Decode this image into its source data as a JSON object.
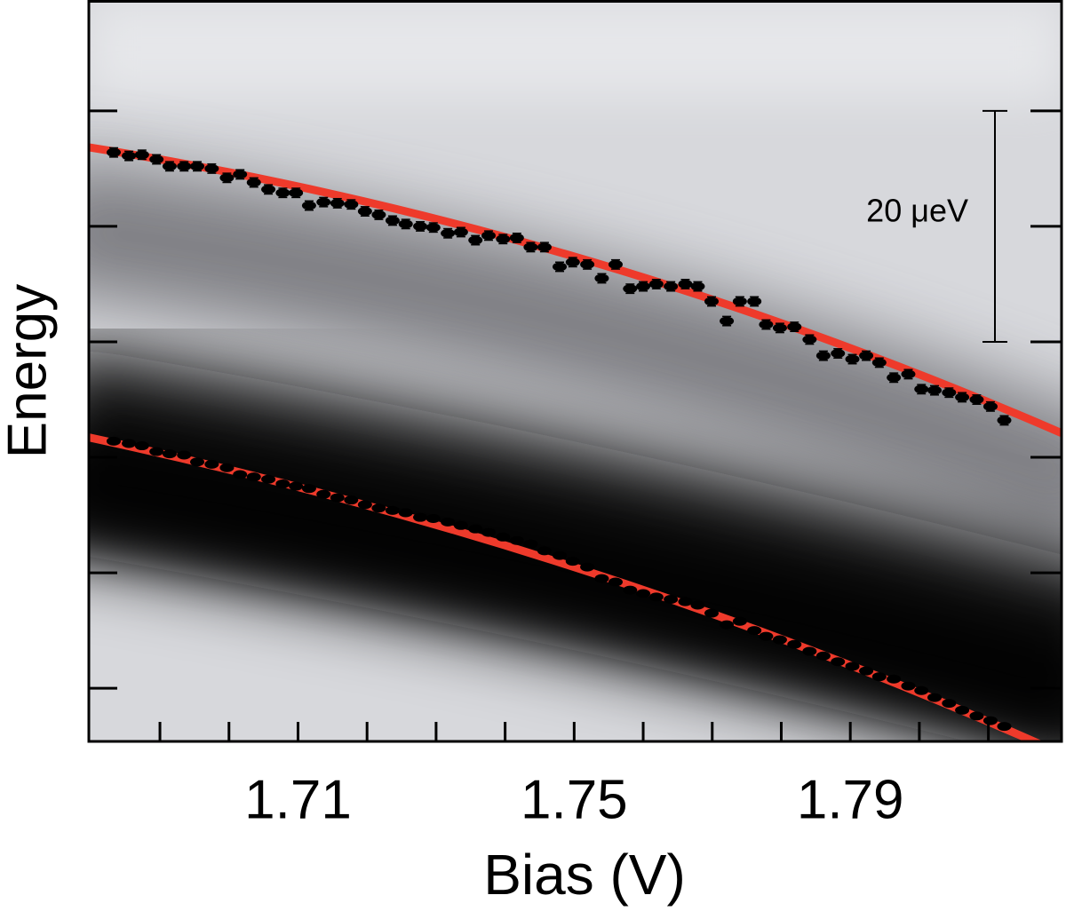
{
  "chart_data": {
    "type": "scatter",
    "xlabel": "Bias (V)",
    "ylabel": "Energy",
    "xlim": [
      1.6797,
      1.8206
    ],
    "ylim": [
      -4.6,
      59.6
    ],
    "xticks": [
      1.71,
      1.75,
      1.79
    ],
    "xminorticks": [
      1.69,
      1.7,
      1.72,
      1.73,
      1.74,
      1.76,
      1.77,
      1.78,
      1.8,
      1.81
    ],
    "yticks": [
      0,
      10,
      20,
      30,
      40,
      50
    ],
    "ytick_labels": false,
    "scale_bar": {
      "label": "20 μeV",
      "from": 30,
      "to": 50
    },
    "x": [
      1.6833,
      1.6855,
      1.6874,
      1.6895,
      1.6914,
      1.6935,
      1.6954,
      1.6975,
      1.6997,
      1.7016,
      1.7036,
      1.7057,
      1.7078,
      1.7097,
      1.7116,
      1.7137,
      1.7157,
      1.7177,
      1.7197,
      1.7217,
      1.7237,
      1.7256,
      1.7277,
      1.7296,
      1.7317,
      1.7336,
      1.7357,
      1.7376,
      1.7397,
      1.7417,
      1.7437,
      1.7457,
      1.7479,
      1.7498,
      1.7519,
      1.754,
      1.756,
      1.7581,
      1.76,
      1.7619,
      1.764,
      1.7661,
      1.7679,
      1.7699,
      1.7721,
      1.774,
      1.7761,
      1.7778,
      1.7798,
      1.7819,
      1.7841,
      1.7861,
      1.7882,
      1.7903,
      1.7923,
      1.7942,
      1.7963,
      1.7984,
      1.8003,
      1.8022,
      1.8043,
      1.8062,
      1.8083,
      1.8103,
      1.8123
    ],
    "series": [
      {
        "color": "#000000",
        "error": 0.4,
        "values": [
          46.4,
          46.1,
          46.2,
          45.8,
          45.2,
          45.2,
          45.2,
          45.0,
          44.2,
          44.5,
          43.8,
          43.2,
          42.9,
          42.9,
          41.8,
          42.1,
          42.0,
          41.9,
          41.3,
          41.0,
          40.5,
          40.2,
          40.0,
          39.9,
          39.4,
          39.5,
          38.8,
          39.2,
          38.9,
          39.0,
          38.2,
          38.2,
          36.5,
          36.9,
          36.7,
          35.5,
          36.7,
          34.6,
          34.8,
          35.0,
          34.8,
          35.0,
          34.8,
          33.5,
          31.8,
          33.5,
          33.5,
          31.5,
          31.2,
          31.3,
          30.2,
          28.8,
          29.0,
          28.5,
          28.8,
          28.2,
          26.9,
          27.2,
          25.9,
          25.8,
          25.6,
          25.2,
          25.0,
          24.4,
          23.2
        ]
      },
      {
        "color": "#000000",
        "values": [
          21.4,
          21.2,
          21.0,
          20.5,
          20.3,
          20.2,
          19.6,
          19.4,
          19.1,
          18.5,
          18.3,
          18.1,
          17.7,
          17.5,
          17.3,
          16.8,
          16.5,
          16.3,
          15.9,
          15.6,
          15.4,
          15.2,
          14.8,
          14.7,
          14.4,
          14.1,
          13.8,
          13.5,
          13.1,
          12.8,
          12.5,
          11.9,
          11.5,
          11.0,
          10.5,
          9.5,
          9.2,
          8.5,
          8.2,
          7.9,
          7.7,
          7.5,
          7.2,
          6.5,
          5.5,
          5.8,
          5.0,
          4.5,
          4.2,
          3.8,
          3.2,
          2.8,
          2.3,
          1.9,
          1.5,
          1.0,
          0.8,
          0.2,
          -0.2,
          -0.8,
          -1.3,
          -1.9,
          -2.4,
          -2.8,
          -3.3
        ]
      }
    ],
    "fits": [
      {
        "color": "#ee3a2b",
        "x": [
          1.6791,
          1.7505,
          1.8206
        ],
        "values": [
          46.9,
          37.3,
          22.1
        ]
      },
      {
        "color": "#ee3a2b",
        "x": [
          1.6791,
          1.7505,
          1.8181
        ],
        "values": [
          21.8,
          10.4,
          -5.0
        ]
      }
    ]
  }
}
